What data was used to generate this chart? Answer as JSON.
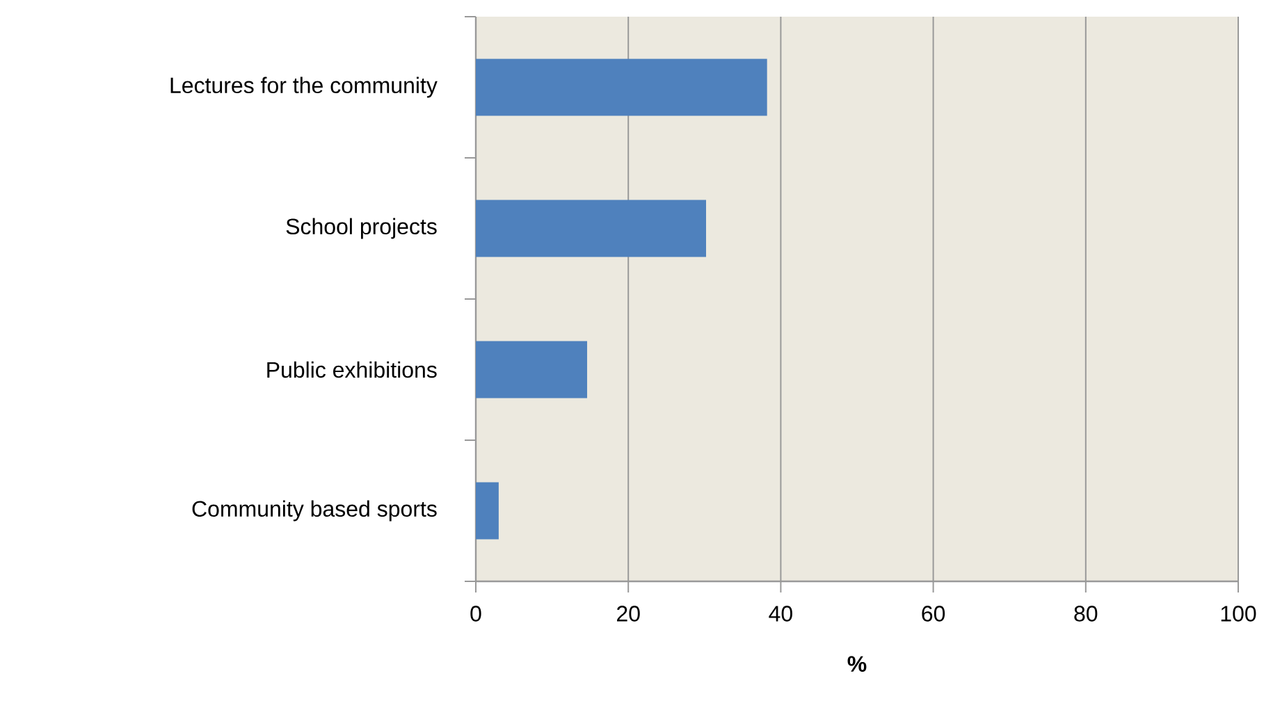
{
  "chart_data": {
    "type": "bar",
    "orientation": "horizontal",
    "xlabel": "%",
    "categories": [
      "Lectures for the community",
      "School projects",
      "Public exhibitions",
      "Community based sports"
    ],
    "values": [
      38.2,
      30.2,
      14.6,
      3.0
    ],
    "color": "#4f81bd",
    "xlim": [
      0,
      100
    ],
    "xticks": [
      0,
      20,
      40,
      60,
      80,
      100
    ],
    "grid": "x"
  }
}
